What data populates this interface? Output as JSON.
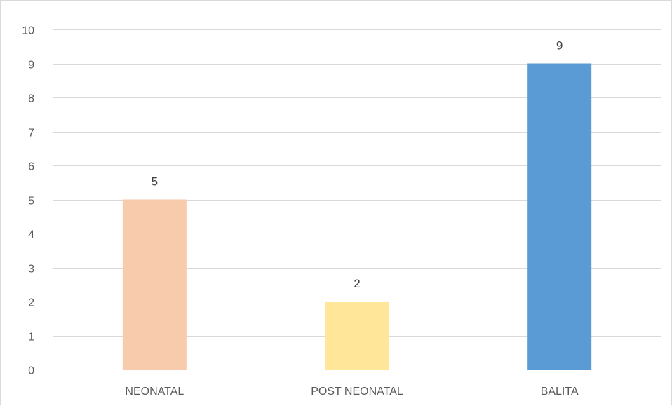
{
  "chart_data": {
    "type": "bar",
    "title": "",
    "xlabel": "",
    "ylabel": "",
    "categories": [
      "NEONATAL",
      "POST NEONATAL",
      "BALITA"
    ],
    "values": [
      5,
      2,
      9
    ],
    "data_labels": [
      "5",
      "2",
      "9"
    ],
    "bar_colors": [
      "#f8cbad",
      "#ffe699",
      "#5b9bd5"
    ],
    "ylim": [
      0,
      10
    ],
    "yticks": [
      0,
      1,
      2,
      3,
      4,
      5,
      6,
      7,
      8,
      9,
      10
    ],
    "grid": true,
    "legend": "none"
  }
}
